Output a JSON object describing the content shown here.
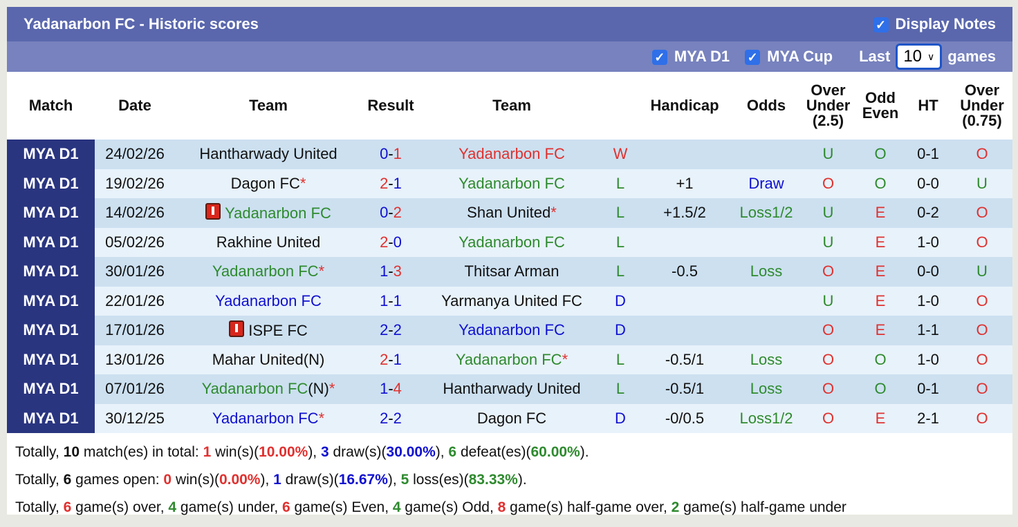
{
  "header": {
    "title": "Yadanarbon FC - Historic scores",
    "display_notes": "Display Notes",
    "display_notes_checked": true
  },
  "filters": {
    "league1": "MYA D1",
    "league2": "MYA Cup",
    "last_label": "Last",
    "last_value": "10",
    "games_label": "games"
  },
  "columns": [
    "Match",
    "Date",
    "Team",
    "Result",
    "Team",
    "",
    "Handicap",
    "Odds",
    "Over Under (2.5)",
    "Odd Even",
    "HT",
    "Over Under (0.75)"
  ],
  "colors": {
    "red": "#e0312f",
    "green": "#2e8a2e",
    "blue": "#1010d0",
    "header": "#5a67ad",
    "match_col": "#2a3580"
  },
  "rows": [
    {
      "match": "MYA D1",
      "date": "24/02/26",
      "home": {
        "name": "Hantharwady United",
        "color": "black"
      },
      "score": [
        {
          "v": "0",
          "c": "blue"
        },
        {
          "v": "1",
          "c": "red"
        }
      ],
      "away": {
        "name": "Yadanarbon FC",
        "color": "red"
      },
      "wl": {
        "v": "W",
        "c": "red"
      },
      "handicap": "",
      "odds": {
        "v": "",
        "c": "green"
      },
      "ou": {
        "v": "U",
        "c": "green"
      },
      "oe": {
        "v": "O",
        "c": "green"
      },
      "ht": "0-1",
      "ou2": {
        "v": "O",
        "c": "red"
      }
    },
    {
      "match": "MYA D1",
      "date": "19/02/26",
      "home": {
        "name": "Dagon FC",
        "color": "black",
        "star": "*"
      },
      "score": [
        {
          "v": "2",
          "c": "red"
        },
        {
          "v": "1",
          "c": "blue"
        }
      ],
      "away": {
        "name": "Yadanarbon FC",
        "color": "green"
      },
      "wl": {
        "v": "L",
        "c": "green"
      },
      "handicap": "+1",
      "odds": {
        "v": "Draw",
        "c": "blue"
      },
      "ou": {
        "v": "O",
        "c": "red"
      },
      "oe": {
        "v": "O",
        "c": "green"
      },
      "ht": "0-0",
      "ou2": {
        "v": "U",
        "c": "green"
      }
    },
    {
      "match": "MYA D1",
      "date": "14/02/26",
      "home": {
        "name": "Yadanarbon FC",
        "color": "green",
        "card": true
      },
      "score": [
        {
          "v": "0",
          "c": "blue"
        },
        {
          "v": "2",
          "c": "red"
        }
      ],
      "away": {
        "name": "Shan United",
        "color": "black",
        "star": "*"
      },
      "wl": {
        "v": "L",
        "c": "green"
      },
      "handicap": "+1.5/2",
      "odds": {
        "v": "Loss1/2",
        "c": "green"
      },
      "ou": {
        "v": "U",
        "c": "green"
      },
      "oe": {
        "v": "E",
        "c": "red"
      },
      "ht": "0-2",
      "ou2": {
        "v": "O",
        "c": "red"
      }
    },
    {
      "match": "MYA D1",
      "date": "05/02/26",
      "home": {
        "name": "Rakhine United",
        "color": "black"
      },
      "score": [
        {
          "v": "2",
          "c": "red"
        },
        {
          "v": "0",
          "c": "blue"
        }
      ],
      "away": {
        "name": "Yadanarbon FC",
        "color": "green"
      },
      "wl": {
        "v": "L",
        "c": "green"
      },
      "handicap": "",
      "odds": {
        "v": "",
        "c": "green"
      },
      "ou": {
        "v": "U",
        "c": "green"
      },
      "oe": {
        "v": "E",
        "c": "red"
      },
      "ht": "1-0",
      "ou2": {
        "v": "O",
        "c": "red"
      }
    },
    {
      "match": "MYA D1",
      "date": "30/01/26",
      "home": {
        "name": "Yadanarbon FC",
        "color": "green",
        "star": "*"
      },
      "score": [
        {
          "v": "1",
          "c": "blue"
        },
        {
          "v": "3",
          "c": "red"
        }
      ],
      "away": {
        "name": "Thitsar Arman",
        "color": "black"
      },
      "wl": {
        "v": "L",
        "c": "green"
      },
      "handicap": "-0.5",
      "odds": {
        "v": "Loss",
        "c": "green"
      },
      "ou": {
        "v": "O",
        "c": "red"
      },
      "oe": {
        "v": "E",
        "c": "red"
      },
      "ht": "0-0",
      "ou2": {
        "v": "U",
        "c": "green"
      }
    },
    {
      "match": "MYA D1",
      "date": "22/01/26",
      "home": {
        "name": "Yadanarbon FC",
        "color": "blue"
      },
      "score": [
        {
          "v": "1",
          "c": "blue"
        },
        {
          "v": "1",
          "c": "blue"
        }
      ],
      "away": {
        "name": "Yarmanya United FC",
        "color": "black"
      },
      "wl": {
        "v": "D",
        "c": "blue"
      },
      "handicap": "",
      "odds": {
        "v": "",
        "c": "green"
      },
      "ou": {
        "v": "U",
        "c": "green"
      },
      "oe": {
        "v": "E",
        "c": "red"
      },
      "ht": "1-0",
      "ou2": {
        "v": "O",
        "c": "red"
      }
    },
    {
      "match": "MYA D1",
      "date": "17/01/26",
      "home": {
        "name": "ISPE FC",
        "color": "black",
        "card": true
      },
      "score": [
        {
          "v": "2",
          "c": "blue"
        },
        {
          "v": "2",
          "c": "blue"
        }
      ],
      "away": {
        "name": "Yadanarbon FC",
        "color": "blue"
      },
      "wl": {
        "v": "D",
        "c": "blue"
      },
      "handicap": "",
      "odds": {
        "v": "",
        "c": "green"
      },
      "ou": {
        "v": "O",
        "c": "red"
      },
      "oe": {
        "v": "E",
        "c": "red"
      },
      "ht": "1-1",
      "ou2": {
        "v": "O",
        "c": "red"
      }
    },
    {
      "match": "MYA D1",
      "date": "13/01/26",
      "home": {
        "name": "Mahar United(N)",
        "color": "black"
      },
      "score": [
        {
          "v": "2",
          "c": "red"
        },
        {
          "v": "1",
          "c": "blue"
        }
      ],
      "away": {
        "name": "Yadanarbon FC",
        "color": "green",
        "star": "*"
      },
      "wl": {
        "v": "L",
        "c": "green"
      },
      "handicap": "-0.5/1",
      "odds": {
        "v": "Loss",
        "c": "green"
      },
      "ou": {
        "v": "O",
        "c": "red"
      },
      "oe": {
        "v": "O",
        "c": "green"
      },
      "ht": "1-0",
      "ou2": {
        "v": "O",
        "c": "red"
      }
    },
    {
      "match": "MYA D1",
      "date": "07/01/26",
      "home": {
        "name": "Yadanarbon FC",
        "suffix": "(N)",
        "color": "green",
        "star": "*"
      },
      "score": [
        {
          "v": "1",
          "c": "blue"
        },
        {
          "v": "4",
          "c": "red"
        }
      ],
      "away": {
        "name": "Hantharwady United",
        "color": "black"
      },
      "wl": {
        "v": "L",
        "c": "green"
      },
      "handicap": "-0.5/1",
      "odds": {
        "v": "Loss",
        "c": "green"
      },
      "ou": {
        "v": "O",
        "c": "red"
      },
      "oe": {
        "v": "O",
        "c": "green"
      },
      "ht": "0-1",
      "ou2": {
        "v": "O",
        "c": "red"
      }
    },
    {
      "match": "MYA D1",
      "date": "30/12/25",
      "home": {
        "name": "Yadanarbon FC",
        "color": "blue",
        "star": "*"
      },
      "score": [
        {
          "v": "2",
          "c": "blue"
        },
        {
          "v": "2",
          "c": "blue"
        }
      ],
      "away": {
        "name": "Dagon FC",
        "color": "black"
      },
      "wl": {
        "v": "D",
        "c": "blue"
      },
      "handicap": "-0/0.5",
      "odds": {
        "v": "Loss1/2",
        "c": "green"
      },
      "ou": {
        "v": "O",
        "c": "red"
      },
      "oe": {
        "v": "E",
        "c": "red"
      },
      "ht": "2-1",
      "ou2": {
        "v": "O",
        "c": "red"
      }
    }
  ],
  "summary": [
    [
      {
        "t": "Totally, "
      },
      {
        "t": "10",
        "b": 1
      },
      {
        "t": " match(es) in total: "
      },
      {
        "t": "1",
        "c": "red",
        "b": 1
      },
      {
        "t": " win(s)("
      },
      {
        "t": "10.00%",
        "c": "red",
        "b": 1
      },
      {
        "t": "), "
      },
      {
        "t": "3",
        "c": "blue",
        "b": 1
      },
      {
        "t": " draw(s)("
      },
      {
        "t": "30.00%",
        "c": "blue",
        "b": 1
      },
      {
        "t": "), "
      },
      {
        "t": "6",
        "c": "green",
        "b": 1
      },
      {
        "t": " defeat(es)("
      },
      {
        "t": "60.00%",
        "c": "green",
        "b": 1
      },
      {
        "t": ")."
      }
    ],
    [
      {
        "t": "Totally, "
      },
      {
        "t": "6",
        "b": 1
      },
      {
        "t": " games open: "
      },
      {
        "t": "0",
        "c": "red",
        "b": 1
      },
      {
        "t": " win(s)("
      },
      {
        "t": "0.00%",
        "c": "red",
        "b": 1
      },
      {
        "t": "), "
      },
      {
        "t": "1",
        "c": "blue",
        "b": 1
      },
      {
        "t": " draw(s)("
      },
      {
        "t": "16.67%",
        "c": "blue",
        "b": 1
      },
      {
        "t": "), "
      },
      {
        "t": "5",
        "c": "green",
        "b": 1
      },
      {
        "t": " loss(es)("
      },
      {
        "t": "83.33%",
        "c": "green",
        "b": 1
      },
      {
        "t": ")."
      }
    ],
    [
      {
        "t": "Totally, "
      },
      {
        "t": "6",
        "c": "red",
        "b": 1
      },
      {
        "t": " game(s) over, "
      },
      {
        "t": "4",
        "c": "green",
        "b": 1
      },
      {
        "t": " game(s) under, "
      },
      {
        "t": "6",
        "c": "red",
        "b": 1
      },
      {
        "t": " game(s) Even, "
      },
      {
        "t": "4",
        "c": "green",
        "b": 1
      },
      {
        "t": " game(s) Odd, "
      },
      {
        "t": "8",
        "c": "red",
        "b": 1
      },
      {
        "t": " game(s) half-game over, "
      },
      {
        "t": "2",
        "c": "green",
        "b": 1
      },
      {
        "t": " game(s) half-game under"
      }
    ]
  ]
}
